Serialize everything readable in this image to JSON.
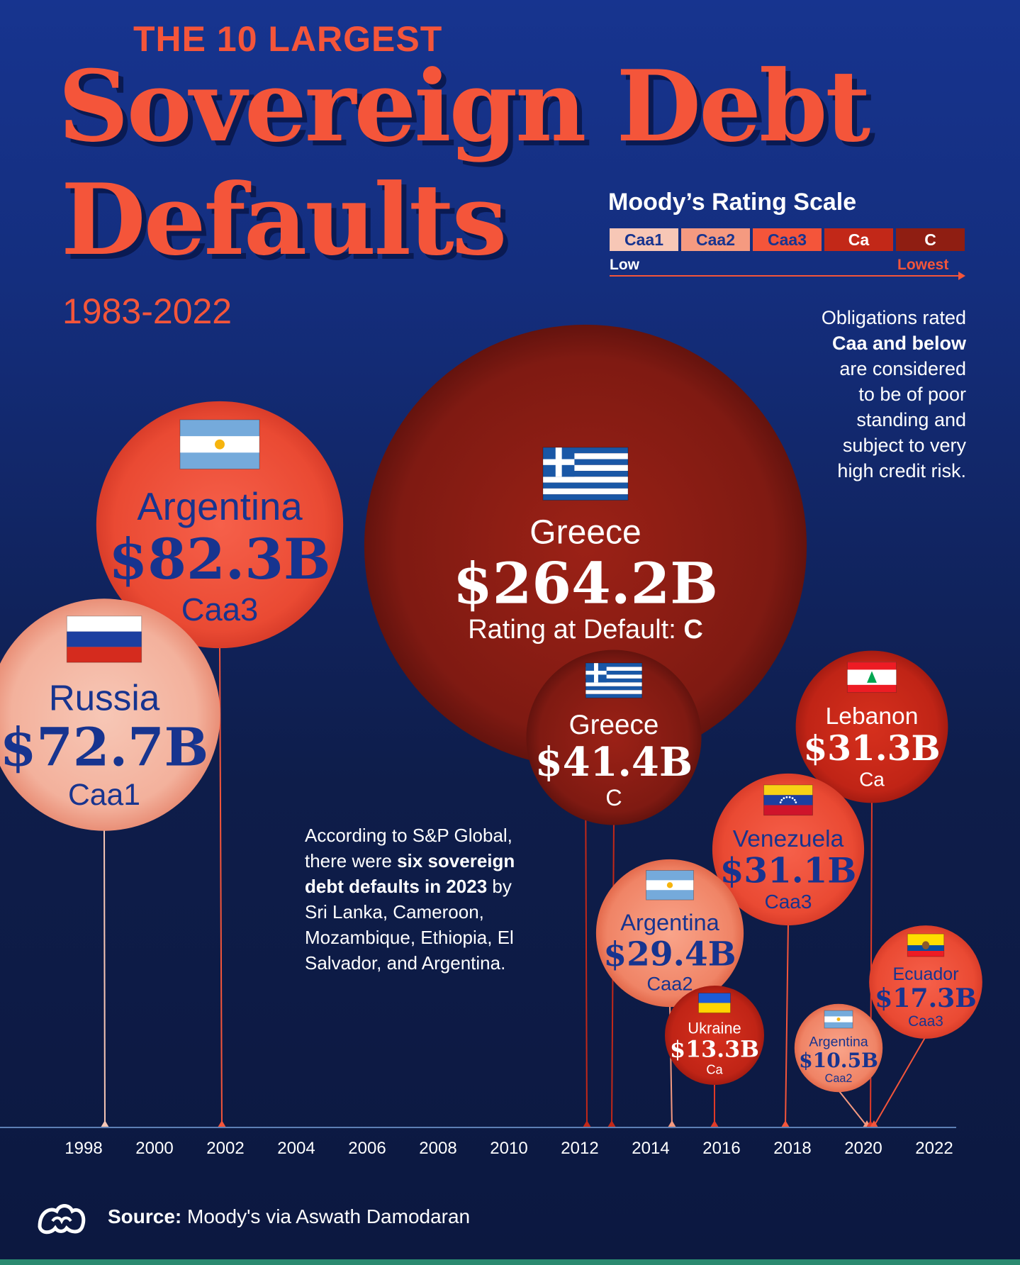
{
  "header": {
    "kicker": "THE 10 LARGEST",
    "title_line1": "Sovereign Debt",
    "title_line2": "Defaults",
    "years": "1983-2022"
  },
  "rating_scale": {
    "title": "Moody’s Rating Scale",
    "levels": [
      {
        "label": "Caa1",
        "color": "#f7c7b6",
        "text_color": "#17348f"
      },
      {
        "label": "Caa2",
        "color": "#f59a80",
        "text_color": "#17348f"
      },
      {
        "label": "Caa3",
        "color": "#f4553a",
        "text_color": "#17348f"
      },
      {
        "label": "Ca",
        "color": "#c22818",
        "text_color": "#ffffff"
      },
      {
        "label": "C",
        "color": "#8f1e12",
        "text_color": "#ffffff"
      }
    ],
    "low_label": "Low",
    "lowest_label": "Lowest"
  },
  "notes": {
    "right_line1": "Obligations rated",
    "right_bold": "Caa and below",
    "right_line3": "are considered",
    "right_line4": "to be of poor",
    "right_line5": "standing and",
    "right_line6": "subject to very",
    "right_line7": "high credit risk.",
    "left_pre": "According to S&P Global, there were",
    "left_bold": "six sovereign debt defaults in 2023",
    "left_post": "by Sri Lanka, Cameroon, Mozambique, Ethiopia, El Salvador, and Argentina."
  },
  "chart_data": {
    "type": "bubble-timeline",
    "title": "The 10 Largest Sovereign Debt Defaults 1983-2022",
    "x_ticks": [
      1998,
      2000,
      2002,
      2004,
      2006,
      2008,
      2010,
      2012,
      2014,
      2016,
      2018,
      2020,
      2022
    ],
    "xlim": [
      1997,
      2023
    ],
    "value_unit": "USD billions",
    "greece_rating_prefix": "Rating at Default: ",
    "points": [
      {
        "country": "Russia",
        "flag": "russia",
        "year": 1998.6,
        "value": 72.7,
        "value_label": "$72.7B",
        "rating": "Caa1"
      },
      {
        "country": "Argentina",
        "flag": "argentina",
        "year": 2001.9,
        "value": 82.3,
        "value_label": "$82.3B",
        "rating": "Caa3"
      },
      {
        "country": "Greece",
        "flag": "greece",
        "year": 2012.2,
        "value": 264.2,
        "value_label": "$264.2B",
        "rating": "C"
      },
      {
        "country": "Greece",
        "flag": "greece",
        "year": 2012.9,
        "value": 41.4,
        "value_label": "$41.4B",
        "rating": "C"
      },
      {
        "country": "Argentina",
        "flag": "argentina",
        "year": 2014.6,
        "value": 29.4,
        "value_label": "$29.4B",
        "rating": "Caa2"
      },
      {
        "country": "Ukraine",
        "flag": "ukraine",
        "year": 2015.8,
        "value": 13.3,
        "value_label": "$13.3B",
        "rating": "Ca"
      },
      {
        "country": "Venezuela",
        "flag": "venezuela",
        "year": 2017.8,
        "value": 31.1,
        "value_label": "$31.1B",
        "rating": "Caa3"
      },
      {
        "country": "Argentina",
        "flag": "argentina",
        "year": 2020.1,
        "value": 10.5,
        "value_label": "$10.5B",
        "rating": "Caa2"
      },
      {
        "country": "Lebanon",
        "flag": "lebanon",
        "year": 2020.2,
        "value": 31.3,
        "value_label": "$31.3B",
        "rating": "Ca"
      },
      {
        "country": "Ecuador",
        "flag": "ecuador",
        "year": 2020.3,
        "value": 17.3,
        "value_label": "$17.3B",
        "rating": "Caa3"
      }
    ]
  },
  "footer": {
    "source_label": "Source:",
    "source_text": " Moody's via Aswath Damodaran"
  }
}
